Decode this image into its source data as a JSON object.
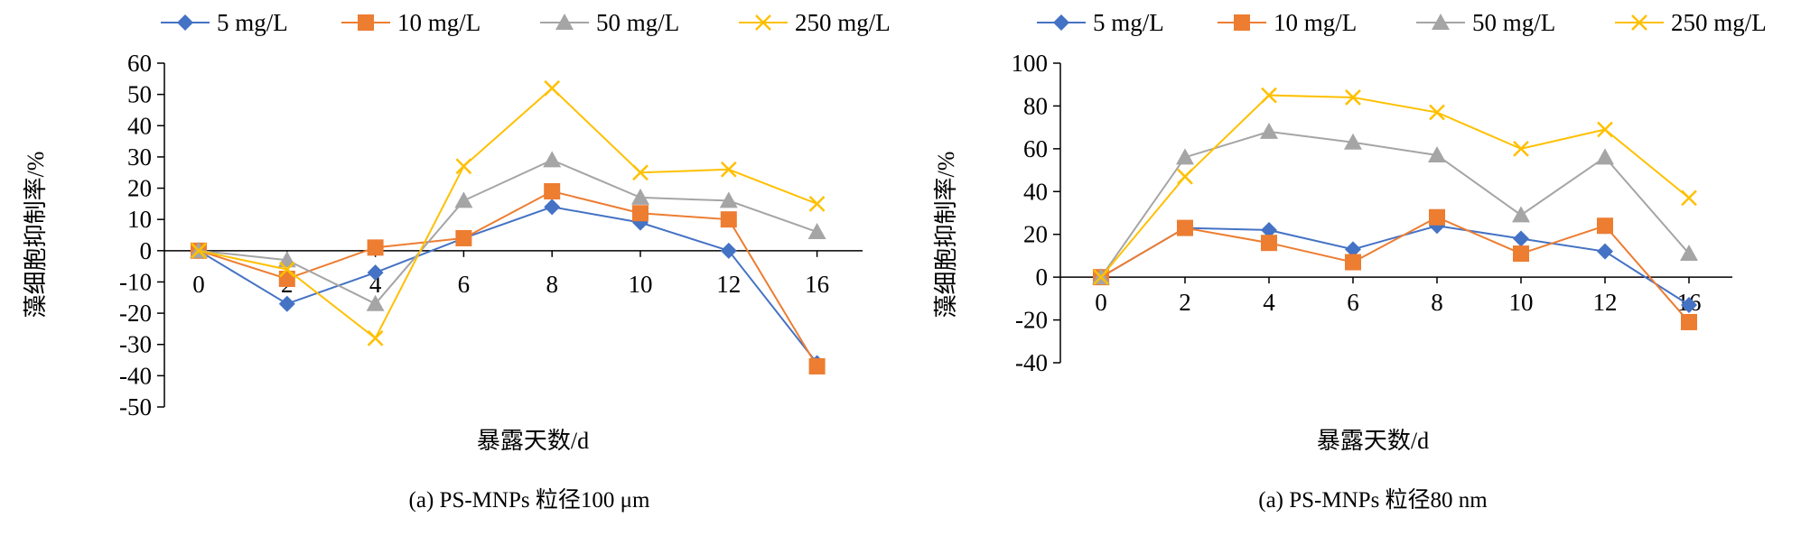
{
  "chart_data": [
    {
      "type": "line",
      "caption": "(a) PS-MNPs 粒径100 μm",
      "xlabel": "暴露天数/d",
      "ylabel": "藻细胞抑制率/%",
      "categories": [
        "0",
        "2",
        "4",
        "6",
        "8",
        "10",
        "12",
        "16"
      ],
      "ylim": [
        -50,
        60
      ],
      "yticks": [
        60,
        50,
        40,
        30,
        20,
        10,
        0,
        -10,
        -20,
        -30,
        -40,
        -50
      ],
      "grid": false,
      "legend_position": "top",
      "series": [
        {
          "name": "5 mg/L",
          "color": "#4472c4",
          "marker": "diamond",
          "values": [
            0,
            -17,
            -7,
            4,
            14,
            9,
            0,
            -36
          ]
        },
        {
          "name": "10 mg/L",
          "color": "#ed7d31",
          "marker": "square",
          "values": [
            0,
            -9,
            1,
            4,
            19,
            12,
            10,
            -37
          ]
        },
        {
          "name": "50 mg/L",
          "color": "#a5a5a5",
          "marker": "triangle",
          "values": [
            0,
            -3,
            -17,
            16,
            29,
            17,
            16,
            6
          ]
        },
        {
          "name": "250 mg/L",
          "color": "#ffc000",
          "marker": "x",
          "values": [
            0,
            -6,
            -28,
            27,
            52,
            25,
            26,
            15
          ]
        }
      ]
    },
    {
      "type": "line",
      "caption": "(a) PS-MNPs 粒径80 nm",
      "xlabel": "暴露天数/d",
      "ylabel": "藻细胞抑制率/%",
      "categories": [
        "0",
        "2",
        "4",
        "6",
        "8",
        "10",
        "12",
        "16"
      ],
      "ylim": [
        -40,
        100
      ],
      "yticks": [
        100,
        80,
        60,
        40,
        20,
        0,
        -20,
        -40
      ],
      "grid": false,
      "legend_position": "top",
      "series": [
        {
          "name": "5 mg/L",
          "color": "#4472c4",
          "marker": "diamond",
          "values": [
            0,
            23,
            22,
            13,
            24,
            18,
            12,
            -13
          ]
        },
        {
          "name": "10 mg/L",
          "color": "#ed7d31",
          "marker": "square",
          "values": [
            0,
            23,
            16,
            7,
            28,
            11,
            24,
            -21
          ]
        },
        {
          "name": "50 mg/L",
          "color": "#a5a5a5",
          "marker": "triangle",
          "values": [
            0,
            56,
            68,
            63,
            57,
            29,
            56,
            11
          ]
        },
        {
          "name": "250 mg/L",
          "color": "#ffc000",
          "marker": "x",
          "values": [
            0,
            47,
            85,
            84,
            77,
            60,
            69,
            37
          ]
        }
      ]
    }
  ]
}
